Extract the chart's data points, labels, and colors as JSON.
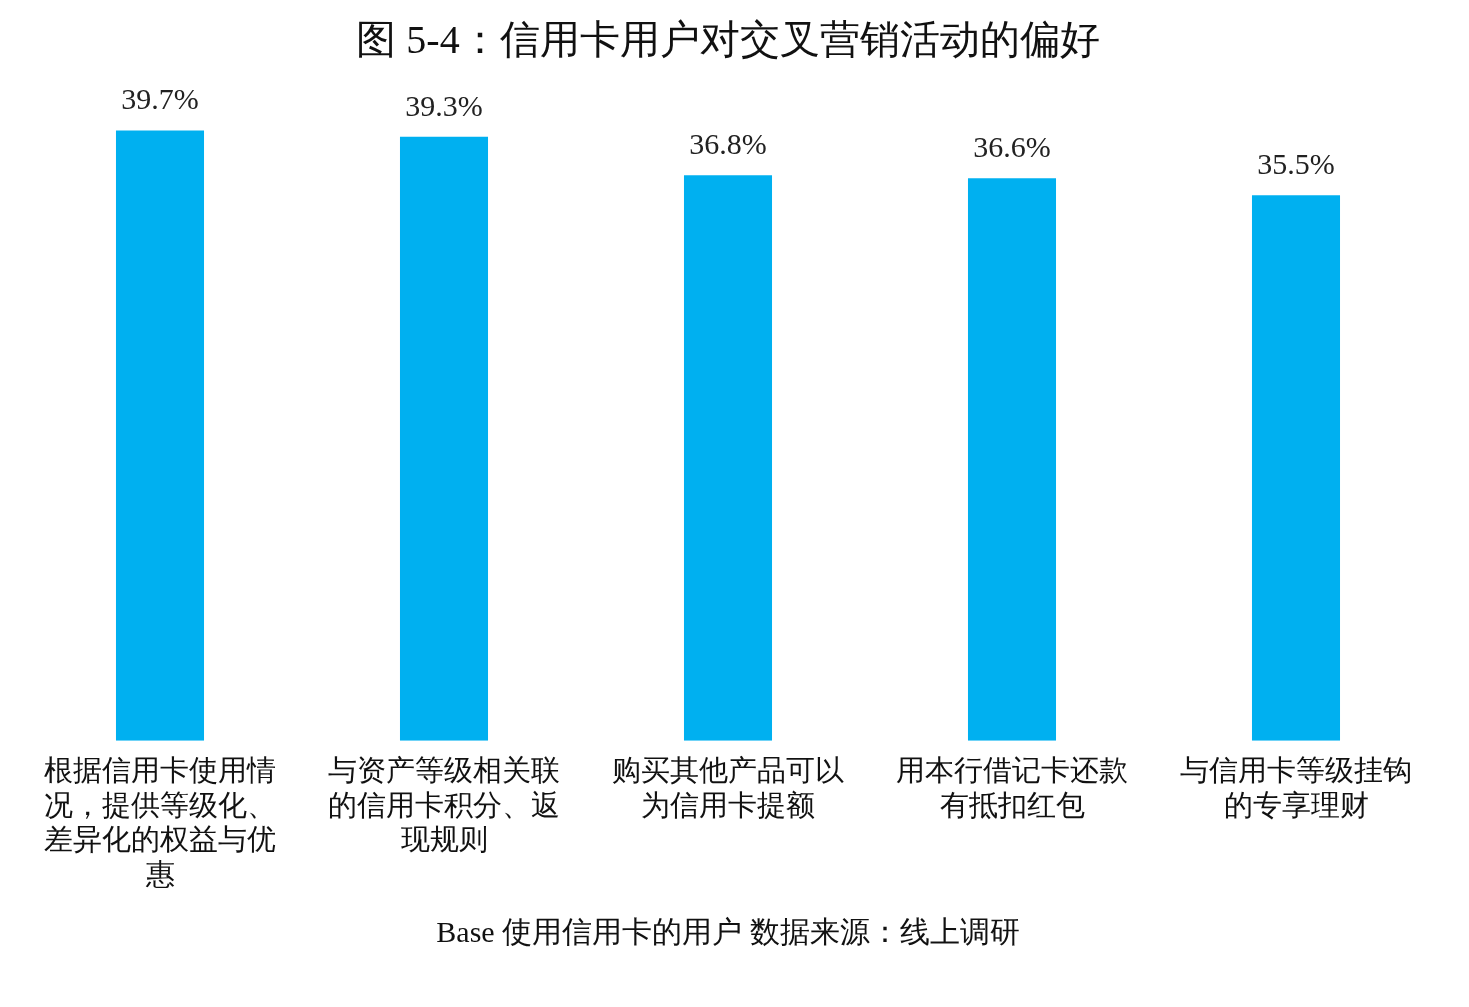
{
  "chart_data": {
    "type": "bar",
    "title": "图 5-4：信用卡用户对交叉营销活动的偏好",
    "categories": [
      "根据信用卡使用情况，提供等级化、差异化的权益与优惠",
      "与资产等级相关联的信用卡积分、返现规则",
      "购买其他产品可以为信用卡提额",
      "用本行借记卡还款有抵扣红包",
      "与信用卡等级挂钩的专享理财"
    ],
    "values": [
      39.7,
      39.3,
      36.8,
      36.6,
      35.5
    ],
    "value_labels": [
      "39.7%",
      "39.3%",
      "36.8%",
      "36.6%",
      "35.5%"
    ],
    "color": "#00b0f0",
    "grid": false,
    "legend": false,
    "annotations": [
      "Base 使用信用卡的用户  数据来源：线上调研"
    ]
  }
}
